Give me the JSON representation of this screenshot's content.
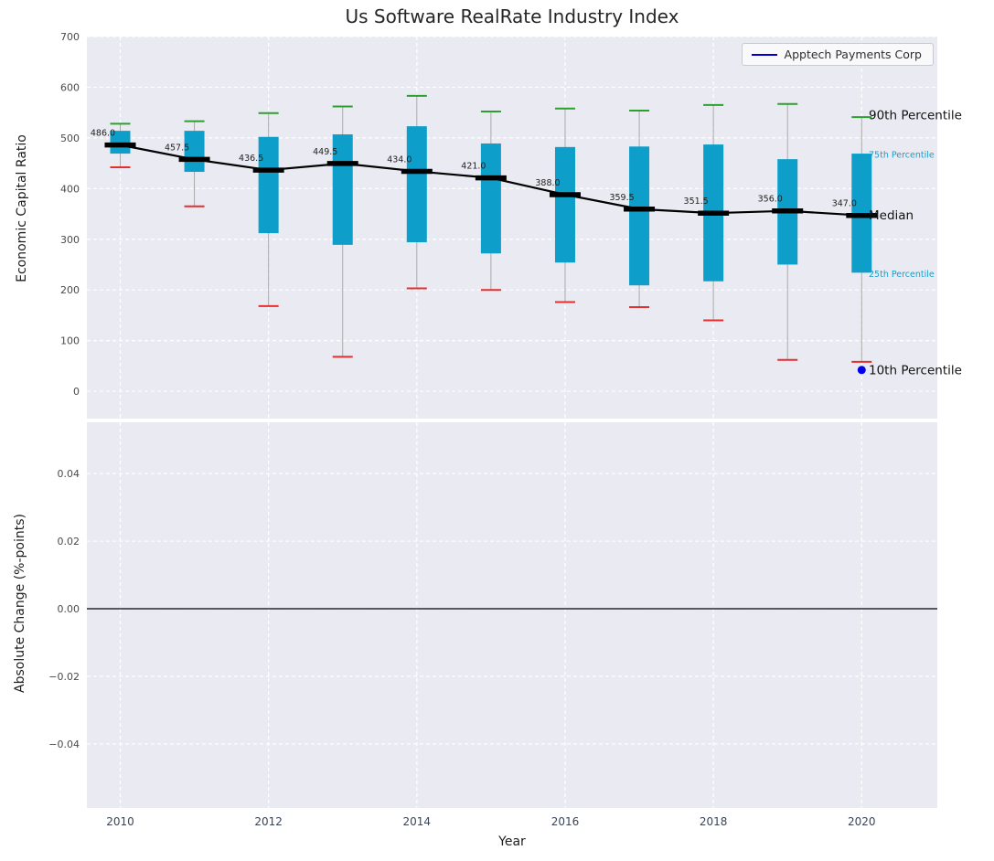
{
  "figure": {
    "title": "Us Software RealRate Industry Index",
    "legend": {
      "label": "Apptech Payments Corp"
    }
  },
  "chart_data": [
    {
      "type": "boxplot",
      "title": "Us Software RealRate Industry Index",
      "ylabel": "Economic Capital Ratio",
      "ylim": [
        -54,
        700
      ],
      "yticks": [
        0,
        100,
        200,
        300,
        400,
        500,
        600,
        700
      ],
      "ytick_labels": [
        "0",
        "100",
        "200",
        "300",
        "400",
        "500",
        "600",
        "700"
      ],
      "xticks": [
        2010,
        2012,
        2014,
        2016,
        2018,
        2020
      ],
      "xtick_labels": [
        "2010",
        "2012",
        "2014",
        "2016",
        "2018",
        "2020"
      ],
      "grid": true,
      "legend_position": "upper right",
      "series_name": "Apptech Payments Corp",
      "years": [
        2010,
        2011,
        2012,
        2013,
        2014,
        2015,
        2016,
        2017,
        2018,
        2019,
        2020
      ],
      "median": [
        486.0,
        457.5,
        436.5,
        449.5,
        434.0,
        421.0,
        388.0,
        359.5,
        351.5,
        356.0,
        347.0
      ],
      "median_labels": [
        "486.0",
        "457.5",
        "436.5",
        "449.5",
        "434.0",
        "421.0",
        "388.0",
        "359.5",
        "351.5",
        "356.0",
        "347.0"
      ],
      "q1": [
        469,
        433,
        312,
        289,
        294,
        272,
        254,
        209,
        217,
        250,
        234
      ],
      "q3": [
        514,
        514,
        502,
        507,
        523,
        489,
        482,
        483,
        487,
        458,
        469
      ],
      "p90": [
        528,
        533,
        549,
        562,
        583,
        552,
        558,
        554,
        565,
        567,
        541
      ],
      "p10": [
        442,
        365,
        168,
        68,
        203,
        200,
        176,
        166,
        140,
        62,
        58
      ],
      "company_point": {
        "year": 2020,
        "value": 42
      },
      "annotations": [
        {
          "label": "90th Percentile",
          "value": 545,
          "style": "major",
          "color": "#111111"
        },
        {
          "label": "75th Percentile",
          "value": 469,
          "style": "minor",
          "color": "#16a0ce"
        },
        {
          "label": "Median",
          "value": 347,
          "style": "major",
          "color": "#111111"
        },
        {
          "label": "25th Percentile",
          "value": 234,
          "style": "minor",
          "color": "#16a0ce"
        },
        {
          "label": "10th Percentile",
          "value": 42,
          "style": "major",
          "color": "#111111"
        }
      ],
      "colors": {
        "box": "#0d9fca",
        "p90_cap": "#2ca02c",
        "p10_cap": "#e62e2e",
        "median": "#000000",
        "whisker": "#a9a9a9",
        "company": "#0000ee",
        "legend_line": "#0000cd",
        "plot_bg": "#eaeaf2",
        "grid": "#ffffff"
      }
    },
    {
      "type": "line",
      "ylabel": "Absolute Change (%-points)",
      "xlabel": "Year",
      "ylim": [
        -0.059,
        0.0552
      ],
      "yticks": [
        0.04,
        0.02,
        0,
        -0.02,
        -0.04
      ],
      "ytick_labels": [
        "0.04",
        "0.02",
        "0.00",
        "−0.02",
        "−0.04"
      ],
      "zero_line": 0,
      "values": []
    }
  ]
}
